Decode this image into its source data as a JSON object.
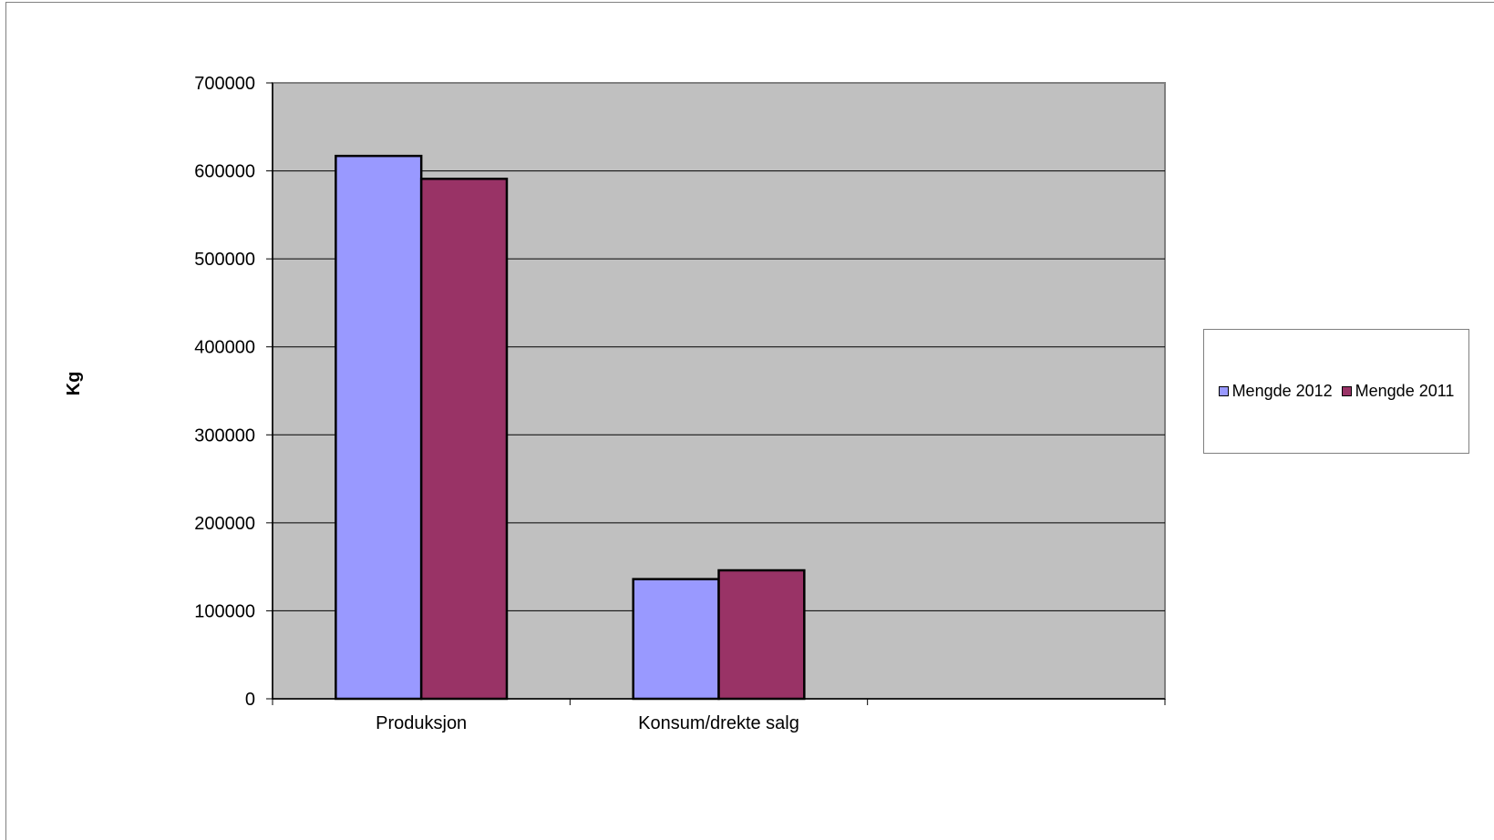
{
  "chart_data": {
    "type": "bar",
    "categories": [
      "Produksjon",
      "Konsum/drekte salg",
      ""
    ],
    "series": [
      {
        "name": "Mengde 2012",
        "values": [
          617000,
          136000,
          null
        ],
        "color": "#9999ff"
      },
      {
        "name": "Mengde 2011",
        "values": [
          591000,
          146000,
          null
        ],
        "color": "#993366"
      }
    ],
    "ylabel": "Kg",
    "ylim": [
      0,
      700000
    ],
    "yticks": [
      "0",
      "100000",
      "200000",
      "300000",
      "400000",
      "500000",
      "600000",
      "700000"
    ],
    "grid": true,
    "legend_position": "right",
    "plot_background": "#c0c0c0"
  }
}
